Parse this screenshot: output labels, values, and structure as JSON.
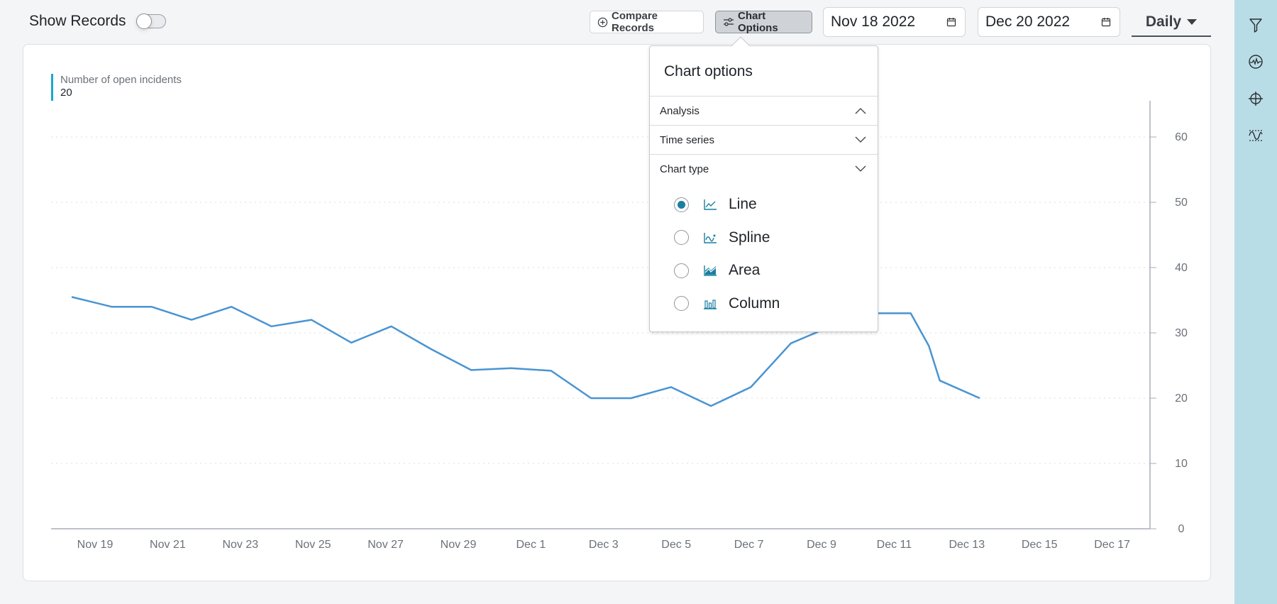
{
  "toolbar": {
    "show_records_label": "Show Records",
    "show_records_on": false,
    "compare_records_label": "Compare Records",
    "chart_options_label": "Chart Options",
    "start_date": "Nov 18 2022",
    "end_date": "Dec 20 2022",
    "interval": "Daily"
  },
  "sidebar": {
    "icons": [
      "filter-icon",
      "activity-monitor-icon",
      "crosshair-icon",
      "signal-threshold-icon"
    ]
  },
  "legend": {
    "series_name": "Number of open incidents",
    "current_value": "20",
    "color": "#1aa8c8"
  },
  "popover": {
    "title": "Chart options",
    "sections": [
      {
        "label": "Analysis",
        "expanded": true
      },
      {
        "label": "Time series",
        "expanded": false
      },
      {
        "label": "Chart type",
        "expanded": false
      }
    ],
    "chart_types": [
      {
        "label": "Line",
        "selected": true,
        "icon": "line-chart-icon"
      },
      {
        "label": "Spline",
        "selected": false,
        "icon": "spline-chart-icon"
      },
      {
        "label": "Area",
        "selected": false,
        "icon": "area-chart-icon"
      },
      {
        "label": "Column",
        "selected": false,
        "icon": "column-chart-icon"
      }
    ]
  },
  "colors": {
    "line": "#4a94d2",
    "accent": "#1a7fa0",
    "sidebar_bg": "#b9dde6"
  },
  "chart_data": {
    "type": "line",
    "title": "Number of open incidents",
    "xlabel": "",
    "ylabel": "",
    "ylim": [
      0,
      65
    ],
    "y_ticks": [
      0,
      10,
      20,
      30,
      40,
      50,
      60
    ],
    "x_tick_labels": [
      "Nov 19",
      "Nov 21",
      "Nov 23",
      "Nov 25",
      "Nov 27",
      "Nov 29",
      "Dec 1",
      "Dec 3",
      "Dec 5",
      "Dec 7",
      "Dec 9",
      "Dec 11",
      "Dec 13",
      "Dec 15",
      "Dec 17"
    ],
    "grid": "horizontal dotted",
    "y_axis_position": "right",
    "series": [
      {
        "name": "Number of open incidents",
        "color": "#4a94d2",
        "x_day_offset": [
          0.0,
          1.1,
          2.2,
          3.3,
          4.4,
          5.5,
          6.6,
          7.7,
          8.8,
          9.9,
          11.0,
          12.1,
          13.2,
          14.3,
          15.4,
          16.5,
          17.6,
          18.7,
          19.8,
          20.9,
          22.0,
          23.1,
          23.6,
          23.9,
          25.0
        ],
        "values": [
          35.5,
          34,
          34,
          32,
          34,
          31,
          32,
          28.5,
          31,
          27.5,
          24.3,
          24.6,
          24.2,
          20,
          20,
          21.7,
          18.8,
          21.7,
          28.4,
          31,
          33,
          33,
          28,
          22.7,
          20
        ]
      }
    ],
    "x_start": "Nov 18",
    "x_end": "Dec 13",
    "last_value": 20
  }
}
